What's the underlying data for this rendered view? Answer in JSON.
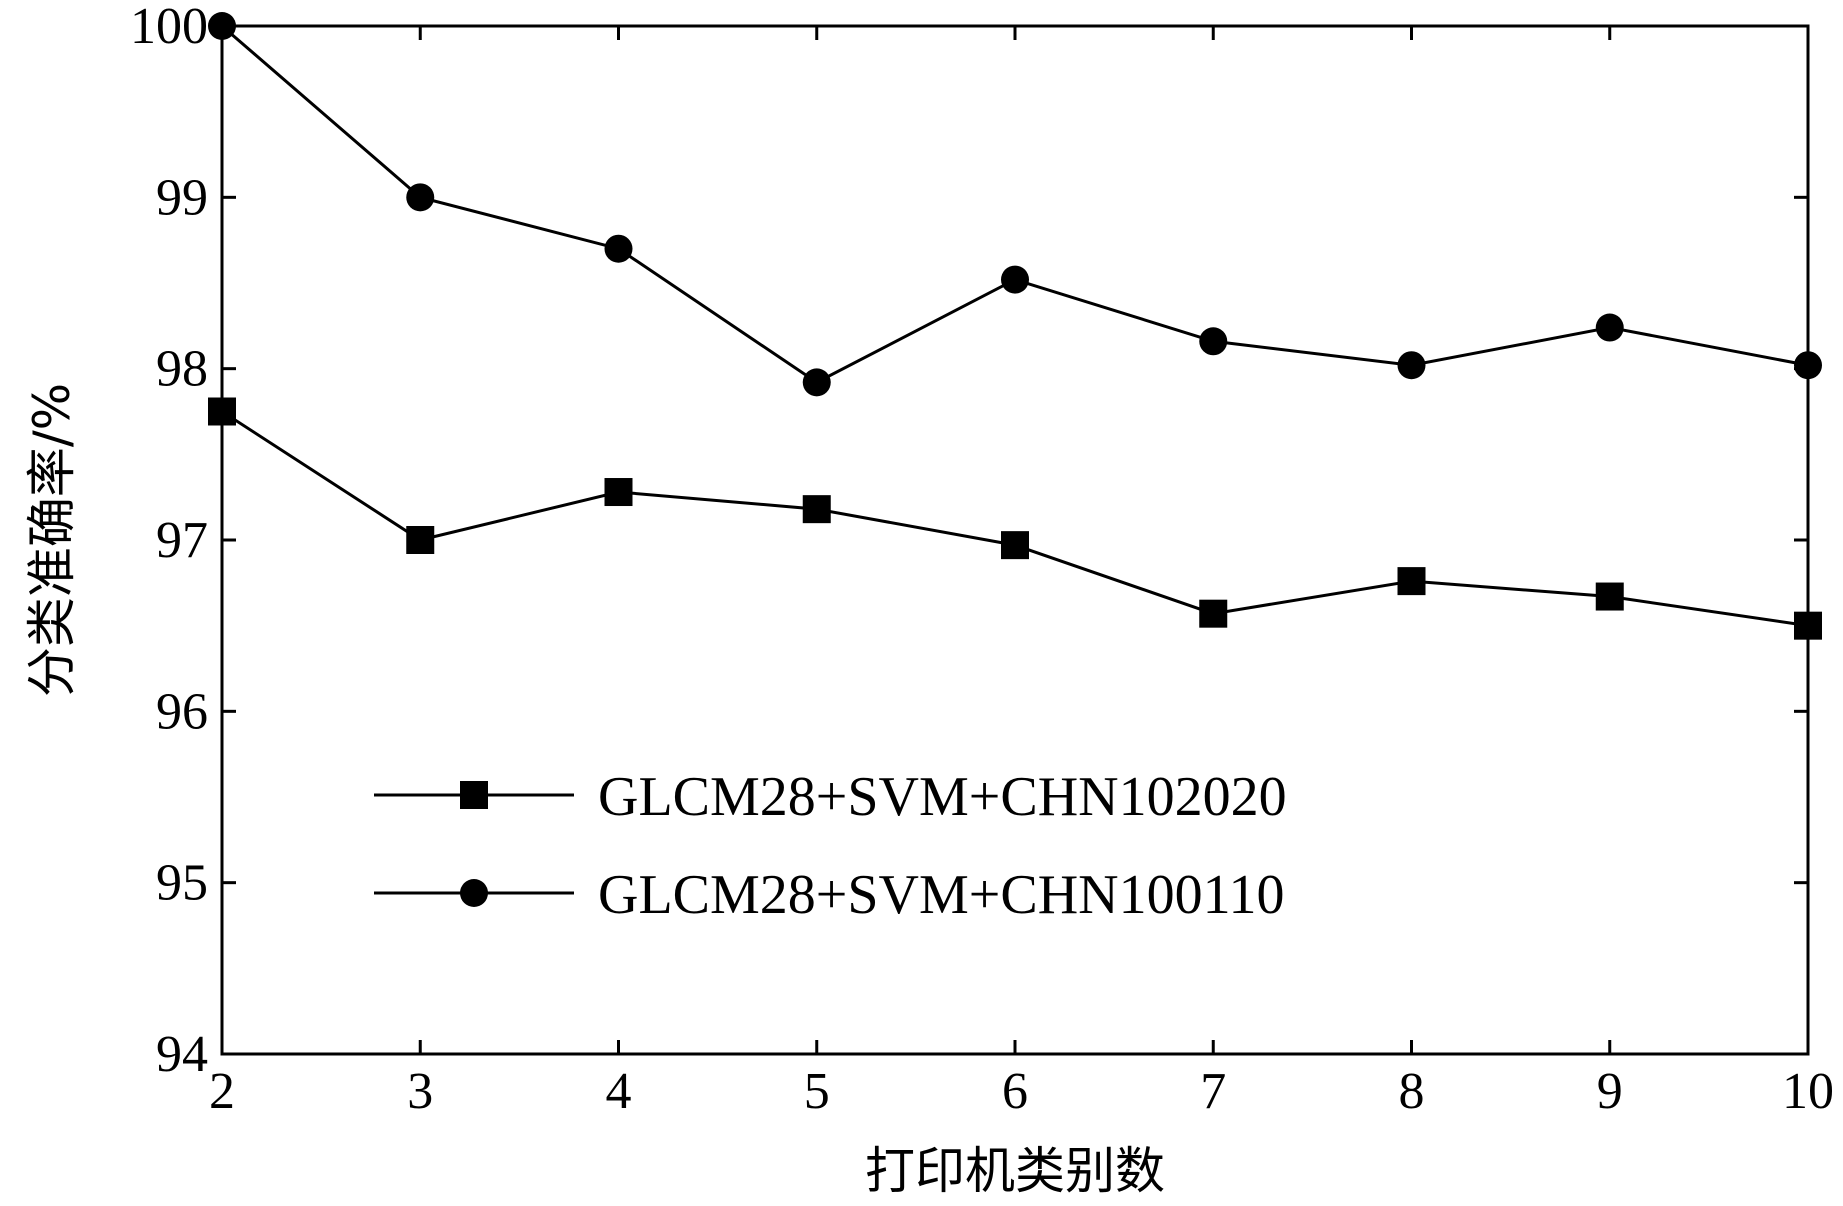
{
  "chart_data": {
    "type": "line",
    "xlabel": "打印机类别数",
    "ylabel": "分类准确率/%",
    "x": [
      2,
      3,
      4,
      5,
      6,
      7,
      8,
      9,
      10
    ],
    "xlim": [
      2,
      10
    ],
    "ylim": [
      94,
      100
    ],
    "xticks": [
      "2",
      "3",
      "4",
      "5",
      "6",
      "7",
      "8",
      "9",
      "10"
    ],
    "yticks": [
      "94",
      "95",
      "96",
      "97",
      "98",
      "99",
      "100"
    ],
    "grid": false,
    "legend_position": "center-left",
    "series": [
      {
        "name": "GLCM28+SVM+CHN102020",
        "marker": "square",
        "color": "#000000",
        "values": [
          97.75,
          97.0,
          97.28,
          97.18,
          96.97,
          96.57,
          96.76,
          96.67,
          96.5
        ]
      },
      {
        "name": "GLCM28+SVM+CHN100110",
        "marker": "circle",
        "color": "#000000",
        "values": [
          100.0,
          99.0,
          98.7,
          97.92,
          98.52,
          98.16,
          98.02,
          98.24,
          98.02
        ]
      }
    ]
  }
}
